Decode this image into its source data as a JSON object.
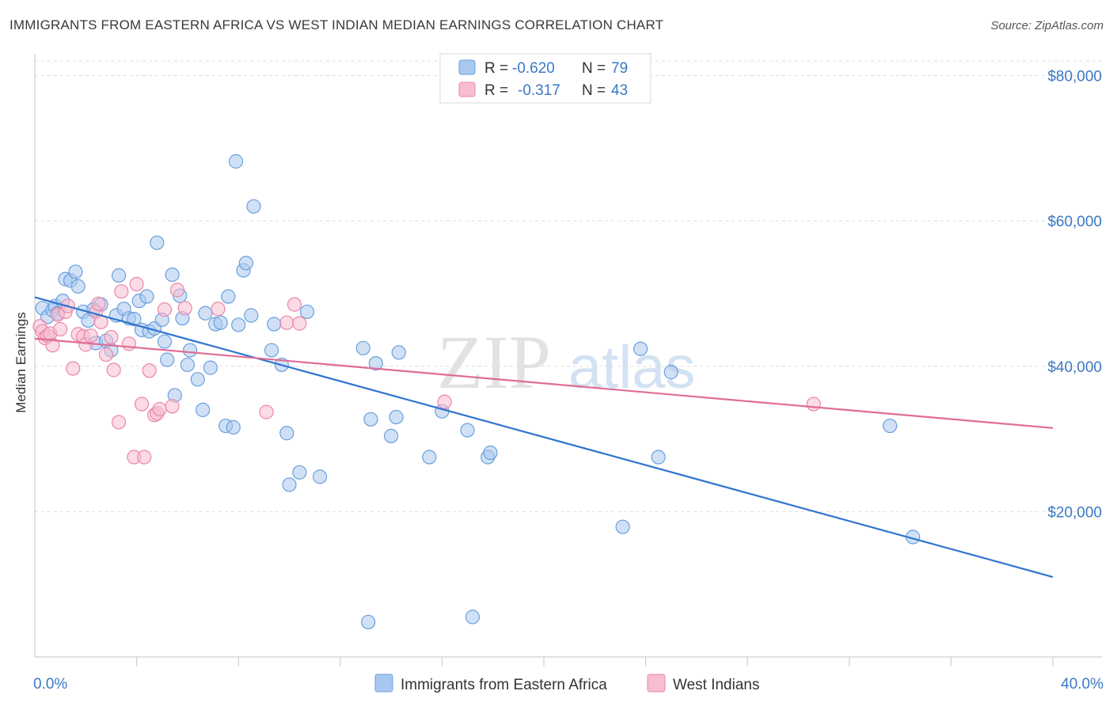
{
  "header": {
    "title": "IMMIGRANTS FROM EASTERN AFRICA VS WEST INDIAN MEDIAN EARNINGS CORRELATION CHART",
    "source": "Source: ZipAtlas.com"
  },
  "watermark": {
    "zip": "ZIP",
    "atlas": "atlas"
  },
  "legend": {
    "row1": {
      "r_label": "R = ",
      "r_value": "-0.620",
      "n_label": "N = ",
      "n_value": "79"
    },
    "row2": {
      "r_label": "R = ",
      "r_value": "-0.317",
      "n_label": "N = ",
      "n_value": "43"
    }
  },
  "bottom_legend": {
    "series1": "Immigrants from Eastern Africa",
    "series2": "West Indians"
  },
  "colors": {
    "blue_fill": "#a9c8ef",
    "blue_stroke": "#6a9fdc",
    "blue_line": "#2f74d0",
    "pink_fill": "#f7bdd0",
    "pink_stroke": "#e987a8",
    "pink_line": "#e06c96",
    "tick": "#3b78c4"
  },
  "chart_data": {
    "type": "scatter",
    "xlabel": "",
    "ylabel": "Median Earnings",
    "xlim": [
      0,
      40
    ],
    "ylim": [
      0,
      83000
    ],
    "x_tick_labels": [
      "0.0%",
      "40.0%"
    ],
    "y_ticks": [
      20000,
      40000,
      60000,
      80000
    ],
    "y_tick_labels": [
      "$20,000",
      "$40,000",
      "$60,000",
      "$80,000"
    ],
    "grid": true,
    "legend_position": "top-center",
    "series": [
      {
        "name": "Immigrants from Eastern Africa",
        "color": "#a9c8ef",
        "trend": {
          "x": [
            0,
            40
          ],
          "y": [
            49500,
            11000
          ]
        },
        "points": [
          [
            0.3,
            48000
          ],
          [
            0.5,
            46800
          ],
          [
            0.7,
            47700
          ],
          [
            0.8,
            48300
          ],
          [
            0.9,
            47300
          ],
          [
            1.1,
            49000
          ],
          [
            1.2,
            52000
          ],
          [
            1.4,
            51800
          ],
          [
            1.6,
            53000
          ],
          [
            1.7,
            51000
          ],
          [
            1.9,
            47500
          ],
          [
            2.1,
            46300
          ],
          [
            2.3,
            47800
          ],
          [
            2.4,
            43200
          ],
          [
            2.6,
            48500
          ],
          [
            2.8,
            43500
          ],
          [
            3.0,
            42200
          ],
          [
            3.2,
            47000
          ],
          [
            3.3,
            52500
          ],
          [
            3.5,
            47900
          ],
          [
            3.7,
            46600
          ],
          [
            3.9,
            46500
          ],
          [
            4.1,
            49000
          ],
          [
            4.2,
            45000
          ],
          [
            4.4,
            49600
          ],
          [
            4.5,
            44800
          ],
          [
            4.7,
            45200
          ],
          [
            4.8,
            57000
          ],
          [
            5.0,
            46400
          ],
          [
            5.1,
            43400
          ],
          [
            5.2,
            40900
          ],
          [
            5.4,
            52600
          ],
          [
            5.5,
            36000
          ],
          [
            5.7,
            49700
          ],
          [
            5.8,
            46600
          ],
          [
            6.0,
            40200
          ],
          [
            6.1,
            42200
          ],
          [
            6.4,
            38200
          ],
          [
            6.6,
            34000
          ],
          [
            6.7,
            47300
          ],
          [
            6.9,
            39800
          ],
          [
            7.1,
            45800
          ],
          [
            7.3,
            46000
          ],
          [
            7.5,
            31800
          ],
          [
            7.6,
            49600
          ],
          [
            7.8,
            31600
          ],
          [
            7.9,
            68200
          ],
          [
            8.0,
            45700
          ],
          [
            8.2,
            53200
          ],
          [
            8.3,
            54200
          ],
          [
            8.5,
            47000
          ],
          [
            8.6,
            62000
          ],
          [
            9.3,
            42200
          ],
          [
            9.4,
            45800
          ],
          [
            9.7,
            40200
          ],
          [
            9.9,
            30800
          ],
          [
            10.0,
            23700
          ],
          [
            10.4,
            25400
          ],
          [
            10.7,
            47500
          ],
          [
            11.2,
            24800
          ],
          [
            12.9,
            42500
          ],
          [
            13.1,
            4800
          ],
          [
            13.2,
            32700
          ],
          [
            13.4,
            40400
          ],
          [
            14.0,
            30400
          ],
          [
            14.2,
            33000
          ],
          [
            14.3,
            41900
          ],
          [
            15.5,
            27500
          ],
          [
            16.0,
            33800
          ],
          [
            17.0,
            31200
          ],
          [
            17.2,
            5500
          ],
          [
            17.8,
            27500
          ],
          [
            17.9,
            28100
          ],
          [
            23.1,
            17900
          ],
          [
            23.8,
            42400
          ],
          [
            24.5,
            27500
          ],
          [
            25.0,
            39200
          ],
          [
            33.6,
            31800
          ],
          [
            34.5,
            16500
          ]
        ]
      },
      {
        "name": "West Indians",
        "color": "#f7bdd0",
        "trend": {
          "x": [
            0,
            40
          ],
          "y": [
            43800,
            31500
          ]
        },
        "points": [
          [
            0.2,
            45500
          ],
          [
            0.3,
            44800
          ],
          [
            0.4,
            43900
          ],
          [
            0.5,
            44200
          ],
          [
            0.6,
            44500
          ],
          [
            0.7,
            42900
          ],
          [
            0.9,
            47100
          ],
          [
            1.0,
            45100
          ],
          [
            1.2,
            47500
          ],
          [
            1.3,
            48300
          ],
          [
            1.5,
            39700
          ],
          [
            1.7,
            44400
          ],
          [
            1.9,
            44100
          ],
          [
            2.0,
            43000
          ],
          [
            2.2,
            44200
          ],
          [
            2.4,
            47500
          ],
          [
            2.5,
            48600
          ],
          [
            2.6,
            46100
          ],
          [
            2.8,
            41600
          ],
          [
            3.0,
            44000
          ],
          [
            3.1,
            39500
          ],
          [
            3.3,
            32300
          ],
          [
            3.4,
            50300
          ],
          [
            3.7,
            43100
          ],
          [
            3.9,
            27500
          ],
          [
            4.0,
            51300
          ],
          [
            4.2,
            34800
          ],
          [
            4.3,
            27500
          ],
          [
            4.5,
            39400
          ],
          [
            4.7,
            33300
          ],
          [
            4.8,
            33500
          ],
          [
            4.9,
            34100
          ],
          [
            5.1,
            47800
          ],
          [
            5.4,
            34500
          ],
          [
            5.6,
            50500
          ],
          [
            5.9,
            48000
          ],
          [
            7.2,
            47900
          ],
          [
            9.1,
            33700
          ],
          [
            9.9,
            46000
          ],
          [
            10.2,
            48500
          ],
          [
            10.4,
            45900
          ],
          [
            16.1,
            35100
          ],
          [
            30.6,
            34800
          ]
        ]
      }
    ]
  }
}
